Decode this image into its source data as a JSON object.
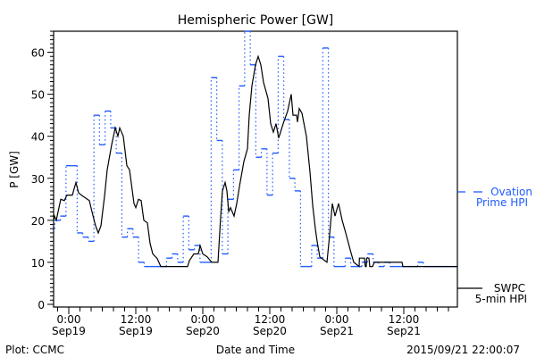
{
  "chart_data": {
    "type": "line",
    "title": "Hemispheric Power [GW]",
    "ylabel": "P [GW]",
    "xlabel": "Date and Time",
    "x_units": "hours since 2015-09-19 00:00 UT",
    "xlim": [
      -2.72,
      69.6
    ],
    "ylim": [
      -0.64,
      65
    ],
    "yticks": [
      0,
      10,
      20,
      30,
      40,
      50,
      60
    ],
    "xticks": [
      {
        "x": 0,
        "line1": "0:00",
        "line2": "Sep19"
      },
      {
        "x": 12,
        "line1": "12:00",
        "line2": "Sep19"
      },
      {
        "x": 24,
        "line1": "0:00",
        "line2": "Sep20"
      },
      {
        "x": 36,
        "line1": "12:00",
        "line2": "Sep20"
      },
      {
        "x": 48,
        "line1": "0:00",
        "line2": "Sep21"
      },
      {
        "x": 60,
        "line1": "12:00",
        "line2": "Sep21"
      }
    ],
    "series": [
      {
        "name": "Ovation Prime HPI",
        "legend_line1": "Ovation",
        "legend_line2": "Prime HPI",
        "color": "#1f5cff",
        "style": "step-hourly",
        "steps": [
          [
            -2.72,
            18
          ],
          [
            -2.5,
            20
          ],
          [
            -1.5,
            21
          ],
          [
            -0.5,
            33
          ],
          [
            0.5,
            33
          ],
          [
            1.5,
            17
          ],
          [
            2.5,
            16
          ],
          [
            3.5,
            15
          ],
          [
            4.5,
            45
          ],
          [
            5.5,
            38
          ],
          [
            6.5,
            46
          ],
          [
            7.5,
            42
          ],
          [
            8.5,
            36
          ],
          [
            9.5,
            16
          ],
          [
            10.5,
            18
          ],
          [
            11.5,
            16
          ],
          [
            12.5,
            10
          ],
          [
            13.5,
            9
          ],
          [
            14.5,
            9
          ],
          [
            15.5,
            9
          ],
          [
            16.5,
            9
          ],
          [
            17.5,
            11
          ],
          [
            18.5,
            12
          ],
          [
            19.5,
            10
          ],
          [
            20.5,
            21
          ],
          [
            21.5,
            13
          ],
          [
            22.5,
            14
          ],
          [
            23.5,
            10
          ],
          [
            24.5,
            10
          ],
          [
            25.5,
            54
          ],
          [
            26.5,
            39
          ],
          [
            27.5,
            12
          ],
          [
            28.5,
            25
          ],
          [
            29.5,
            32
          ],
          [
            30.5,
            52
          ],
          [
            31.5,
            65
          ],
          [
            32.5,
            57
          ],
          [
            33.5,
            35
          ],
          [
            34.5,
            37
          ],
          [
            35.5,
            26
          ],
          [
            36.5,
            36
          ],
          [
            37.5,
            59
          ],
          [
            38.5,
            44
          ],
          [
            39.5,
            30
          ],
          [
            40.5,
            27
          ],
          [
            41.5,
            9
          ],
          [
            42.5,
            9
          ],
          [
            43.5,
            14
          ],
          [
            44.5,
            11
          ],
          [
            45.5,
            61
          ],
          [
            46.5,
            16
          ],
          [
            47.5,
            9
          ],
          [
            48.5,
            9
          ],
          [
            49.5,
            11
          ],
          [
            50.5,
            9
          ],
          [
            51.5,
            9
          ],
          [
            52.5,
            10
          ],
          [
            53.5,
            12
          ],
          [
            54.5,
            10
          ],
          [
            55.5,
            9
          ],
          [
            56.5,
            10
          ],
          [
            57.5,
            9
          ],
          [
            58.5,
            9
          ],
          [
            59.5,
            9
          ],
          [
            60.5,
            9
          ],
          [
            61.5,
            9
          ],
          [
            62.5,
            10
          ],
          [
            63.5,
            9
          ],
          [
            64.5,
            9
          ],
          [
            65.5,
            9
          ],
          [
            66.5,
            9
          ],
          [
            67.5,
            9
          ],
          [
            68.5,
            9
          ]
        ],
        "end": 69.6
      },
      {
        "name": "SWPC 5-min HPI",
        "legend_line1": "SWPC",
        "legend_line2": "5-min HPI",
        "color": "#000000",
        "points": [
          [
            -2.72,
            20
          ],
          [
            -2.56,
            21
          ],
          [
            -2.24,
            20
          ],
          [
            -1.6,
            24
          ],
          [
            -1.44,
            25
          ],
          [
            -0.8,
            24.7
          ],
          [
            -0.32,
            26
          ],
          [
            0.64,
            26
          ],
          [
            1.28,
            29
          ],
          [
            1.76,
            26.5
          ],
          [
            2.56,
            25.7
          ],
          [
            3.68,
            24.7
          ],
          [
            4.16,
            22
          ],
          [
            4.8,
            18.7
          ],
          [
            5.28,
            17
          ],
          [
            5.76,
            18.7
          ],
          [
            6.4,
            25.7
          ],
          [
            6.88,
            32
          ],
          [
            7.68,
            38
          ],
          [
            8.32,
            42
          ],
          [
            8.8,
            40
          ],
          [
            9.12,
            42
          ],
          [
            9.76,
            40
          ],
          [
            10.4,
            33
          ],
          [
            10.88,
            32
          ],
          [
            11.68,
            24
          ],
          [
            12,
            23
          ],
          [
            12.48,
            25
          ],
          [
            12.96,
            24.7
          ],
          [
            13.44,
            20
          ],
          [
            14.08,
            19.4
          ],
          [
            14.56,
            14.5
          ],
          [
            15.04,
            12
          ],
          [
            15.84,
            10.9
          ],
          [
            16.48,
            9
          ],
          [
            21.28,
            9
          ],
          [
            21.6,
            10.4
          ],
          [
            22.4,
            12
          ],
          [
            23.2,
            12
          ],
          [
            23.52,
            14
          ],
          [
            24,
            12
          ],
          [
            24.8,
            11.3
          ],
          [
            25.6,
            10
          ],
          [
            26.72,
            10
          ],
          [
            27.2,
            20.8
          ],
          [
            27.52,
            27
          ],
          [
            28,
            29
          ],
          [
            28.32,
            27
          ],
          [
            28.64,
            22
          ],
          [
            28.96,
            23
          ],
          [
            29.6,
            21
          ],
          [
            30.08,
            24
          ],
          [
            30.56,
            28
          ],
          [
            31.36,
            34
          ],
          [
            32,
            37
          ],
          [
            32.32,
            45
          ],
          [
            32.8,
            52
          ],
          [
            33.44,
            57
          ],
          [
            33.92,
            59
          ],
          [
            34.4,
            57
          ],
          [
            34.88,
            52.8
          ],
          [
            35.68,
            49
          ],
          [
            36.16,
            43
          ],
          [
            36.64,
            41
          ],
          [
            37.12,
            43
          ],
          [
            37.6,
            39.6
          ],
          [
            38.4,
            43
          ],
          [
            39.2,
            46
          ],
          [
            39.84,
            50
          ],
          [
            40.16,
            45
          ],
          [
            40.8,
            45
          ],
          [
            40.96,
            43.4
          ],
          [
            41.28,
            46.6
          ],
          [
            41.76,
            45.5
          ],
          [
            42.56,
            40
          ],
          [
            43.2,
            31.5
          ],
          [
            43.68,
            23.6
          ],
          [
            44.16,
            18
          ],
          [
            44.48,
            15
          ],
          [
            44.96,
            11.3
          ],
          [
            46.24,
            10
          ],
          [
            46.72,
            16.6
          ],
          [
            47.2,
            24
          ],
          [
            47.68,
            21
          ],
          [
            48.32,
            24
          ],
          [
            48.96,
            20
          ],
          [
            49.6,
            17
          ],
          [
            50.4,
            13
          ],
          [
            50.6,
            12
          ],
          [
            51.04,
            10
          ],
          [
            52,
            9
          ],
          [
            52.05,
            11
          ],
          [
            52.96,
            11
          ],
          [
            53.1,
            9
          ],
          [
            53.28,
            9
          ],
          [
            53.35,
            11
          ],
          [
            53.76,
            11
          ],
          [
            53.9,
            9
          ],
          [
            54.4,
            9
          ],
          [
            54.72,
            10
          ],
          [
            59.68,
            10
          ],
          [
            59.84,
            9
          ],
          [
            69.6,
            9
          ]
        ]
      }
    ],
    "footer_left": "Plot: CCMC",
    "footer_right": "2015/09/21 22:00:07"
  }
}
